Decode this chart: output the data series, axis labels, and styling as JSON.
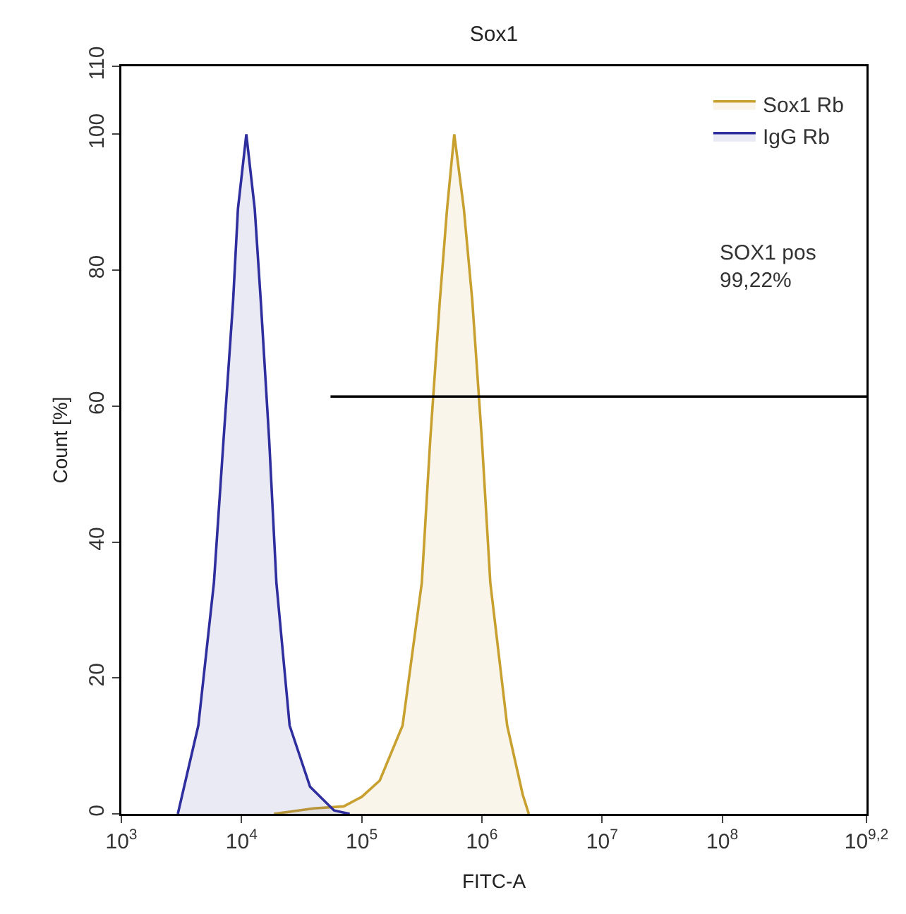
{
  "chart_data": {
    "type": "area",
    "title": "Sox1",
    "xlabel": "FITC-A",
    "ylabel": "Count [%]",
    "log": "x",
    "grid": false,
    "legend": "top right",
    "xlim": [
      1000,
      1584893192
    ],
    "xticks": [
      {
        "value": 1000,
        "label": "10$^{3}$"
      },
      {
        "value": 10000,
        "label": "10$^{4}$"
      },
      {
        "value": 100000,
        "label": "10$^{5}$"
      },
      {
        "value": 1000000,
        "label": "10$^{6}$"
      },
      {
        "value": 10000000,
        "label": "10$^{7}$"
      },
      {
        "value": 100000000,
        "label": "10$^{8}$"
      },
      {
        "value": 1584893192,
        "label": "10$^{9,2}$"
      }
    ],
    "ylim": [
      0,
      110
    ],
    "yticks": [
      0,
      20,
      40,
      60,
      80,
      100,
      110
    ],
    "series": [
      {
        "name": "Sox1 Rb",
        "color": "#c8a030",
        "x": [
          18620,
          39800,
          70800,
          100000,
          141250,
          218800,
          316200,
          371500,
          446700,
          512900,
          588800,
          707900,
          831800,
          1000000,
          1174900,
          1621800,
          2187800,
          2454700
        ],
        "values": [
          0,
          0.8,
          1.1,
          2.5,
          4.9,
          13,
          34,
          55,
          75.5,
          89,
          100,
          89,
          75.5,
          55,
          34,
          13,
          2.8,
          0
        ]
      },
      {
        "name": "IgG Rb",
        "color": "#2e2e9e",
        "x": [
          2950,
          4370,
          5890,
          7080,
          8510,
          9330,
          10960,
          12880,
          14450,
          16980,
          19500,
          25120,
          37150,
          58900,
          79400
        ],
        "values": [
          0,
          13,
          34,
          55,
          75.5,
          89,
          100,
          89,
          75.5,
          55,
          34,
          13,
          4,
          0.5,
          0
        ]
      },
      {
        "type": "line",
        "color": "#000000",
        "x": [
          55000,
          1584893192
        ],
        "values": [
          61.4,
          61.4
        ]
      }
    ],
    "annotations": [
      "SOX1 pos\n99,22%"
    ]
  }
}
